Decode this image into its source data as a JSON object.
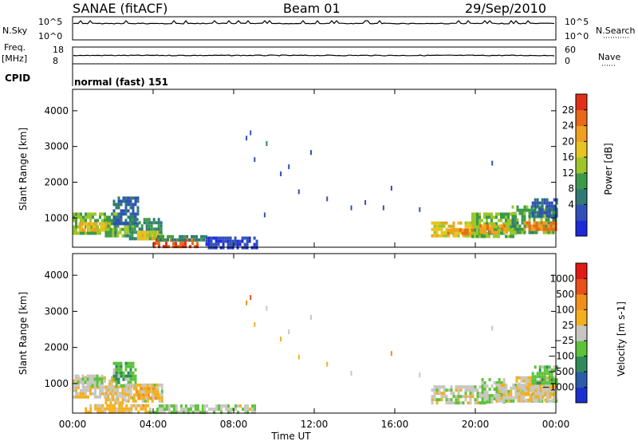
{
  "header": {
    "title": "SANAE (fitACF)",
    "beam": "Beam 01",
    "date": "29/Sep/2010"
  },
  "status_panels": {
    "nsky": {
      "label": "N.Sky",
      "ticks": [
        "10^5",
        "10^0"
      ],
      "right_ticks": [
        "10^5",
        "10^0"
      ],
      "right_label": "N.Search"
    },
    "freq": {
      "label_line1": "Freq.",
      "label_line2": "[MHz]",
      "ticks": [
        "18",
        "8"
      ],
      "right_ticks": [
        "60",
        "0"
      ],
      "right_label": "Nave"
    },
    "cpid": {
      "label": "CPID",
      "text": "normal (fast) 151"
    }
  },
  "x_axis": {
    "ticks": [
      "00:00",
      "04:00",
      "08:00",
      "12:00",
      "16:00",
      "20:00",
      "00:00"
    ],
    "label": "Time UT"
  },
  "colors": {
    "power_scale": [
      "#1f2adb",
      "#3050b8",
      "#2f7a75",
      "#3b9a4a",
      "#9dc62a",
      "#e8c420",
      "#f0a020",
      "#e86a18",
      "#e03018"
    ],
    "velocity_scale": [
      "#1e2fd0",
      "#2a5ca8",
      "#2f8a5a",
      "#5cc23a",
      "#c8c6c0",
      "#f2b020",
      "#f0901c",
      "#e84f1a",
      "#e01a14"
    ],
    "gray_fill": "#c8c6c0"
  },
  "chart_data": [
    {
      "type": "heatmap",
      "name": "power-panel",
      "ylabel": "Slant Range [km]",
      "xlabel": "",
      "xlim_hours": [
        0,
        24
      ],
      "ylim": [
        180,
        4600
      ],
      "yticks": [
        "4000",
        "3000",
        "2000",
        "1000"
      ],
      "ytick_values": [
        4000,
        3000,
        2000,
        1000
      ],
      "colorbar": {
        "label": "Power [dB]",
        "ticks": [
          "28",
          "24",
          "20",
          "16",
          "12",
          "8",
          "4"
        ],
        "range": [
          0,
          30
        ]
      },
      "regions": [
        {
          "t0": 0.0,
          "t1": 2.2,
          "r0": 600,
          "r1": 1150,
          "value": 14
        },
        {
          "t0": 0.3,
          "t1": 1.8,
          "r0": 680,
          "r1": 880,
          "value": 20
        },
        {
          "t0": 1.6,
          "t1": 3.0,
          "r0": 500,
          "r1": 900,
          "value": 12
        },
        {
          "t0": 2.0,
          "t1": 3.3,
          "r0": 880,
          "r1": 1600,
          "value": 6
        },
        {
          "t0": 2.8,
          "t1": 4.4,
          "r0": 450,
          "r1": 1000,
          "value": 10
        },
        {
          "t0": 3.2,
          "t1": 4.5,
          "r0": 420,
          "r1": 640,
          "value": 18
        },
        {
          "t0": 4.0,
          "t1": 6.2,
          "r0": 220,
          "r1": 420,
          "value": 26
        },
        {
          "t0": 4.2,
          "t1": 6.6,
          "r0": 400,
          "r1": 520,
          "value": 10
        },
        {
          "t0": 6.6,
          "t1": 9.2,
          "r0": 200,
          "r1": 480,
          "value": 4
        },
        {
          "t0": 17.8,
          "t1": 20.0,
          "r0": 480,
          "r1": 900,
          "value": 18
        },
        {
          "t0": 18.6,
          "t1": 20.5,
          "r0": 540,
          "r1": 700,
          "value": 24
        },
        {
          "t0": 19.8,
          "t1": 22.0,
          "r0": 520,
          "r1": 1150,
          "value": 14
        },
        {
          "t0": 20.2,
          "t1": 21.6,
          "r0": 600,
          "r1": 820,
          "value": 22
        },
        {
          "t0": 21.8,
          "t1": 24.0,
          "r0": 550,
          "r1": 1350,
          "value": 12
        },
        {
          "t0": 22.4,
          "t1": 24.0,
          "r0": 680,
          "r1": 900,
          "value": 24
        },
        {
          "t0": 22.8,
          "t1": 24.0,
          "r0": 1100,
          "r1": 1550,
          "value": 6
        }
      ],
      "scatter": [
        {
          "t": 8.6,
          "r": 3300,
          "value": 4
        },
        {
          "t": 8.8,
          "r": 3450,
          "value": 6
        },
        {
          "t": 9.0,
          "r": 2700,
          "value": 4
        },
        {
          "t": 9.6,
          "r": 3150,
          "value": 8
        },
        {
          "t": 10.3,
          "r": 2300,
          "value": 4
        },
        {
          "t": 11.2,
          "r": 1800,
          "value": 4
        },
        {
          "t": 11.8,
          "r": 2900,
          "value": 4
        },
        {
          "t": 12.6,
          "r": 1600,
          "value": 4
        },
        {
          "t": 13.8,
          "r": 1350,
          "value": 6
        },
        {
          "t": 14.5,
          "r": 1500,
          "value": 4
        },
        {
          "t": 15.4,
          "r": 1350,
          "value": 4
        },
        {
          "t": 15.8,
          "r": 1900,
          "value": 4
        },
        {
          "t": 17.2,
          "r": 1300,
          "value": 6
        },
        {
          "t": 9.5,
          "r": 1150,
          "value": 4
        },
        {
          "t": 10.7,
          "r": 2500,
          "value": 4
        },
        {
          "t": 20.8,
          "r": 2600,
          "value": 4
        }
      ]
    },
    {
      "type": "heatmap",
      "name": "velocity-panel",
      "ylabel": "Slant Range [km]",
      "xlabel": "Time UT",
      "xlim_hours": [
        0,
        24
      ],
      "ylim": [
        180,
        4600
      ],
      "yticks": [
        "4000",
        "3000",
        "2000",
        "1000"
      ],
      "ytick_values": [
        4000,
        3000,
        2000,
        1000
      ],
      "colorbar": {
        "label": "Velocity [m s-1]",
        "ticks": [
          "1000",
          "500",
          "100",
          "25",
          "−25",
          "−100",
          "−500",
          "−1000"
        ],
        "range": [
          -1200,
          1200
        ]
      },
      "regions": [
        {
          "t0": 0.0,
          "t1": 2.2,
          "r0": 600,
          "r1": 1200,
          "value": 80
        },
        {
          "t0": 0.1,
          "t1": 1.5,
          "r0": 950,
          "r1": 1250,
          "value": -100
        },
        {
          "t0": 1.6,
          "t1": 2.6,
          "r0": 500,
          "r1": 950,
          "value": 150
        },
        {
          "t0": 2.0,
          "t1": 3.1,
          "r0": 950,
          "r1": 1600,
          "value": -300
        },
        {
          "t0": 2.6,
          "t1": 4.4,
          "r0": 480,
          "r1": 1000,
          "value": 60
        },
        {
          "t0": 3.0,
          "t1": 4.2,
          "r0": 600,
          "r1": 900,
          "value": 300
        },
        {
          "t0": 0.6,
          "t1": 3.8,
          "r0": 240,
          "r1": 430,
          "value": 200
        },
        {
          "t0": 3.8,
          "t1": 6.5,
          "r0": 220,
          "r1": 420,
          "value": -120
        },
        {
          "t0": 6.5,
          "t1": 9.0,
          "r0": 220,
          "r1": 420,
          "value": -60
        },
        {
          "t0": 17.8,
          "t1": 20.5,
          "r0": 450,
          "r1": 950,
          "value": 0
        },
        {
          "t0": 20.3,
          "t1": 21.4,
          "r0": 500,
          "r1": 1150,
          "value": -200
        },
        {
          "t0": 21.0,
          "t1": 24.0,
          "r0": 500,
          "r1": 1000,
          "value": 0
        },
        {
          "t0": 22.0,
          "t1": 24.0,
          "r0": 520,
          "r1": 1200,
          "value": 80
        },
        {
          "t0": 22.8,
          "t1": 24.0,
          "r0": 1000,
          "r1": 1500,
          "value": -300
        }
      ],
      "scatter": [
        {
          "t": 8.6,
          "r": 3300,
          "value": 600
        },
        {
          "t": 8.8,
          "r": 3450,
          "value": 800
        },
        {
          "t": 9.0,
          "r": 2700,
          "value": 150
        },
        {
          "t": 9.6,
          "r": 3150,
          "value": 0
        },
        {
          "t": 10.3,
          "r": 2300,
          "value": 150
        },
        {
          "t": 11.2,
          "r": 1800,
          "value": 150
        },
        {
          "t": 11.8,
          "r": 2900,
          "value": 0
        },
        {
          "t": 12.6,
          "r": 1600,
          "value": 150
        },
        {
          "t": 13.8,
          "r": 1350,
          "value": -60
        },
        {
          "t": 15.8,
          "r": 1900,
          "value": 400
        },
        {
          "t": 17.2,
          "r": 1300,
          "value": 0
        },
        {
          "t": 20.8,
          "r": 2600,
          "value": 0
        },
        {
          "t": 10.7,
          "r": 2500,
          "value": 0
        }
      ]
    }
  ]
}
